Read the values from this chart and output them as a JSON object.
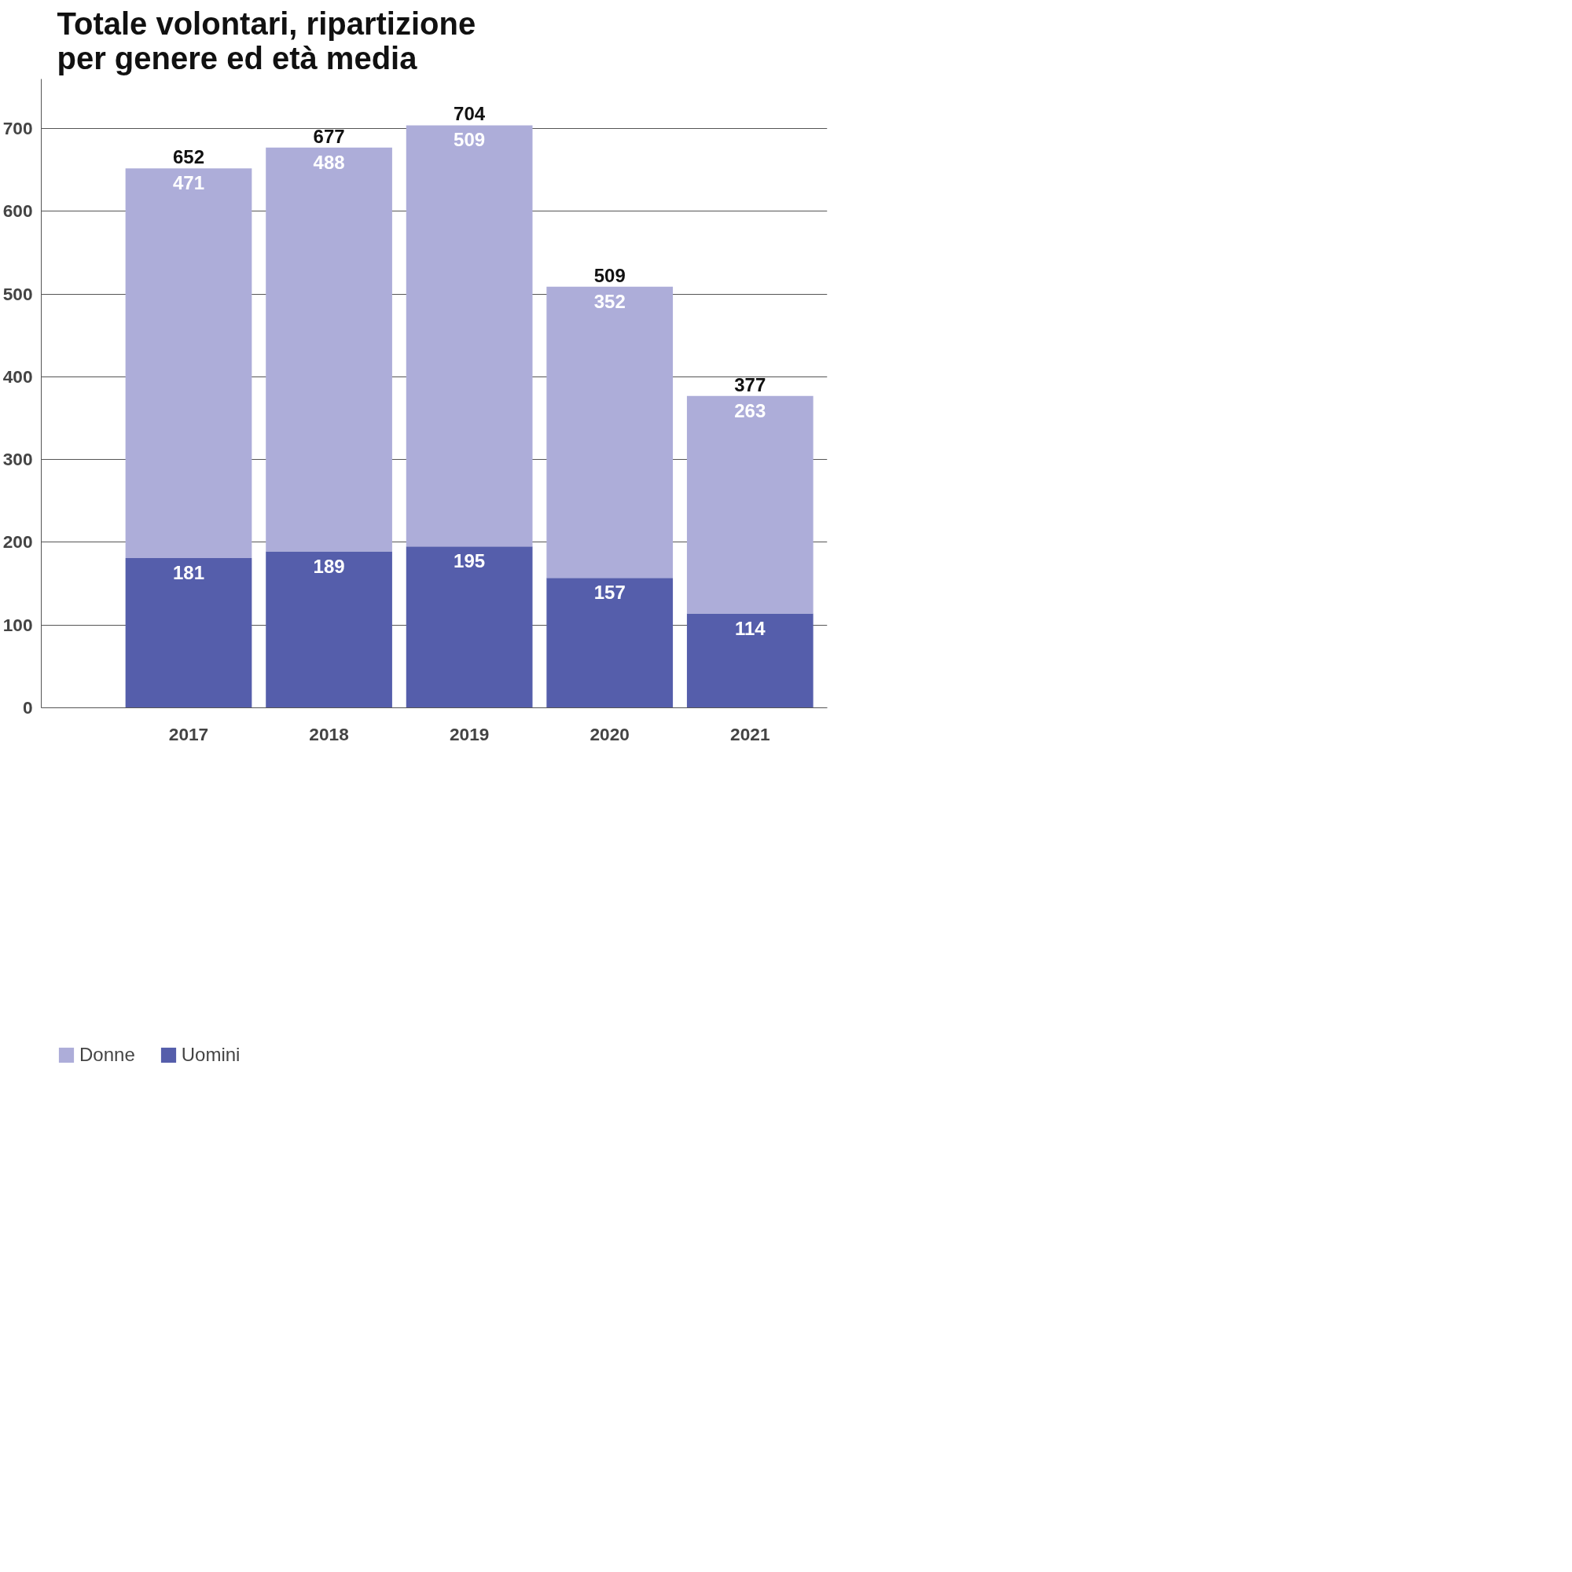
{
  "chart_data": {
    "type": "bar",
    "title": "Totale volontari, ripartizione\nper genere ed età media",
    "categories": [
      "2017",
      "2018",
      "2019",
      "2020",
      "2021"
    ],
    "stacked": true,
    "series": [
      {
        "name": "Uomini",
        "color": "#555eab",
        "values": [
          181,
          189,
          195,
          157,
          114
        ]
      },
      {
        "name": "Donne",
        "color": "#adadd9",
        "values": [
          471,
          488,
          509,
          352,
          263
        ]
      }
    ],
    "totals": [
      "652",
      "677",
      "704",
      "509",
      "377"
    ],
    "data_labels": true,
    "ylim": [
      0,
      760
    ],
    "yticks": [
      0,
      100,
      200,
      300,
      400,
      500,
      600,
      700
    ],
    "grid": "y",
    "legend": "bottom"
  }
}
